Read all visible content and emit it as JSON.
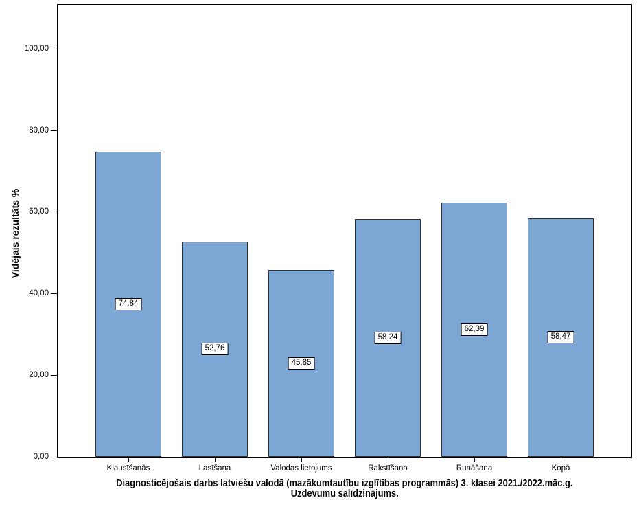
{
  "chart_data": {
    "type": "bar",
    "title": "Diagnosticējošais darbs latviešu valodā (mazākumtautību izglītības programmās) 3. klasei 2021./2022.māc.g. Uzdevumu salīdzinājums.",
    "title_line1": "Diagnosticējošais darbs latviešu valodā (mazākumtautību izglītības programmās) 3. klasei 2021./2022.māc.g.",
    "title_line2": "Uzdevumu salīdzinājums.",
    "ylabel": "Vidējais rezultāts %",
    "xlabel": "",
    "categories": [
      "Klausīšanās",
      "Lasīšana",
      "Valodas lietojums",
      "Rakstīšana",
      "Runāšana",
      "Kopā"
    ],
    "values": [
      74.84,
      52.76,
      45.85,
      58.24,
      62.39,
      58.47
    ],
    "value_labels": [
      "74,84",
      "52,76",
      "45,85",
      "58,24",
      "62,39",
      "58,47"
    ],
    "y_ticks": [
      {
        "value": 0,
        "label": "0,00"
      },
      {
        "value": 20,
        "label": "20,00"
      },
      {
        "value": 40,
        "label": "40,00"
      },
      {
        "value": 60,
        "label": "60,00"
      },
      {
        "value": 80,
        "label": "80,00"
      },
      {
        "value": 100,
        "label": "100,00"
      }
    ],
    "ylim": [
      0,
      110.7
    ],
    "grid": false,
    "legend": "none",
    "value_label_position": "center-of-bar",
    "bar_color": "#7CA6D4",
    "bar_border_color": "#2b2f38",
    "plot_border_color": "#000000",
    "background_color": "#ffffff"
  }
}
